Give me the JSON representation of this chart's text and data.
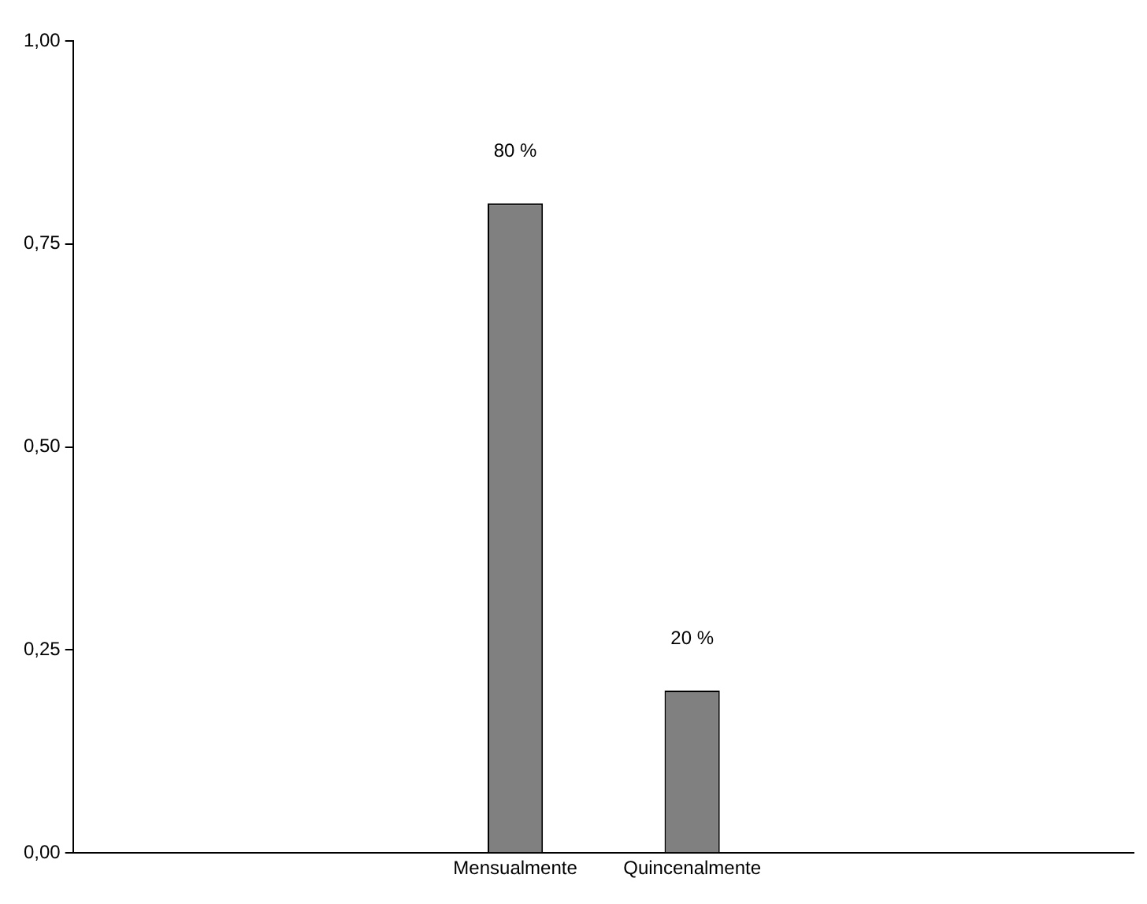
{
  "chart_data": {
    "type": "bar",
    "categories": [
      "Mensualmente",
      "Quincenalmente"
    ],
    "values": [
      0.8,
      0.2
    ],
    "value_labels": [
      "80 %",
      "20 %"
    ],
    "color": "#808080",
    "ylim": [
      0,
      1
    ],
    "yticks": [
      {
        "value": 0,
        "label": "0,00"
      },
      {
        "value": 0.25,
        "label": "0,25"
      },
      {
        "value": 0.5,
        "label": "0,50"
      },
      {
        "value": 0.75,
        "label": "0,75"
      },
      {
        "value": 1,
        "label": "1,00"
      }
    ],
    "grid": false,
    "legend": false
  }
}
